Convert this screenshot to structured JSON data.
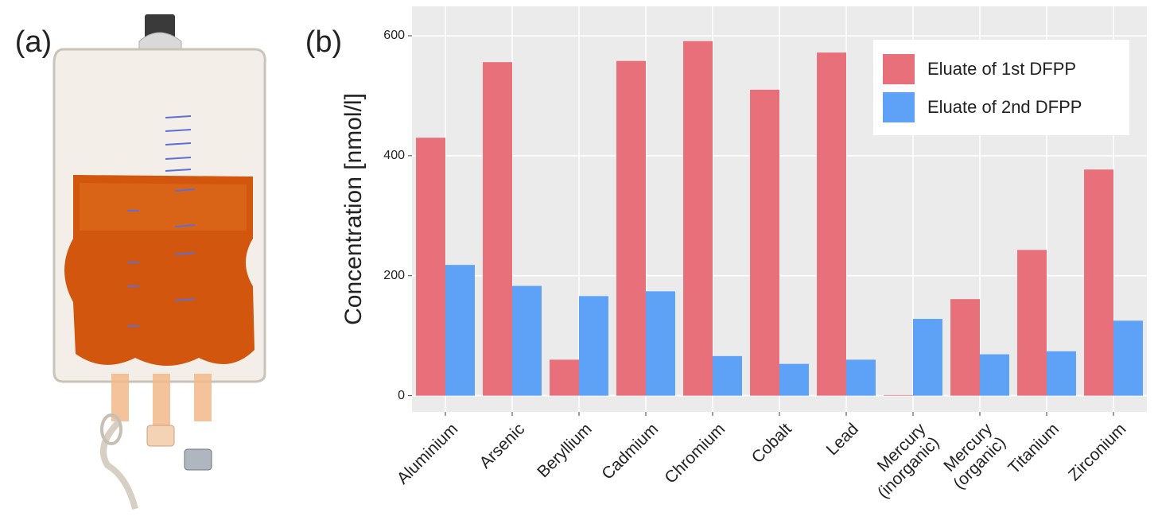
{
  "chart_data": {
    "type": "bar",
    "panel_labels": [
      "(a)",
      "(b)"
    ],
    "y_label": "Concentration [nmol/l]",
    "categories": [
      "Aluminium",
      "Arsenic",
      "Beryllium",
      "Cadmium",
      "Chromium",
      "Cobalt",
      "Lead",
      "Mercury\n(inorganic)",
      "Mercury\n(organic)",
      "Titanium",
      "Zirconium"
    ],
    "series": [
      {
        "name": "Eluate of 1st DFPP",
        "color": "#e8707a",
        "values": [
          430,
          556,
          60,
          558,
          591,
          510,
          572,
          1,
          161,
          243,
          377
        ]
      },
      {
        "name": "Eluate of 2nd DFPP",
        "color": "#5ea2f7",
        "values": [
          218,
          183,
          166,
          174,
          66,
          53,
          60,
          128,
          69,
          74,
          125
        ]
      }
    ],
    "ylim": [
      -27,
      649
    ],
    "yticks": [
      0,
      200,
      400,
      600
    ],
    "grid": true,
    "legend": "top-right"
  }
}
